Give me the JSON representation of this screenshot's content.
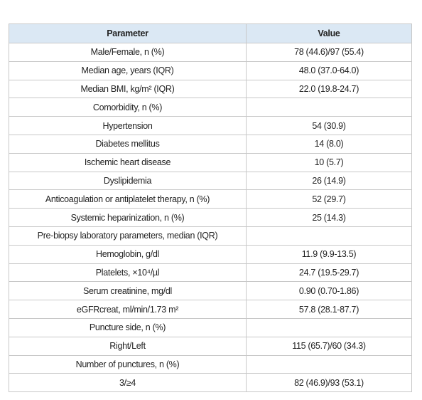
{
  "table": {
    "header": [
      "Parameter",
      "Value"
    ],
    "rows": [
      [
        "Male/Female, n (%)",
        "78 (44.6)/97 (55.4)"
      ],
      [
        "Median age, years (IQR)",
        "48.0 (37.0-64.0)"
      ],
      [
        "Median BMI, kg/m² (IQR)",
        "22.0 (19.8-24.7)"
      ],
      [
        "Comorbidity, n (%)"
      ],
      [
        "Hypertension",
        "54 (30.9)"
      ],
      [
        "Diabetes mellitus",
        "14 (8.0)"
      ],
      [
        "Ischemic heart disease",
        "10 (5.7)"
      ],
      [
        "Dyslipidemia",
        "26 (14.9)"
      ],
      [
        "Anticoagulation or antiplatelet therapy, n (%)",
        "52 (29.7)"
      ],
      [
        "Systemic heparinization, n (%)",
        "25 (14.3)"
      ],
      [
        "Pre-biopsy laboratory parameters, median (IQR)"
      ],
      [
        "Hemoglobin, g/dl",
        "11.9 (9.9-13.5)"
      ],
      [
        "Platelets, ×10⁴/µl",
        "24.7 (19.5-29.7)"
      ],
      [
        "Serum creatinine, mg/dl",
        "0.90 (0.70-1.86)"
      ],
      [
        "eGFRcreat, ml/min/1.73 m²",
        "57.8 (28.1-87.7)"
      ],
      [
        "Puncture side, n (%)"
      ],
      [
        "Right/Left",
        "115 (65.7)/60 (34.3)"
      ],
      [
        "Number of punctures, n (%)"
      ],
      [
        "3/≥4",
        "82 (46.9)/93 (53.1)"
      ]
    ]
  }
}
